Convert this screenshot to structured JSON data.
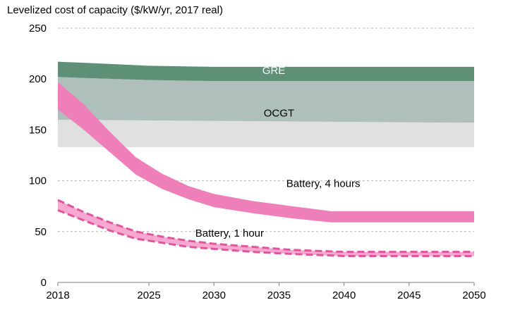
{
  "chart_data": {
    "type": "area",
    "title": "Levelized cost of capacity ($/kW/yr, 2017 real)",
    "xlabel": "",
    "ylabel": "",
    "xlim": [
      2018,
      2050
    ],
    "ylim": [
      0,
      250
    ],
    "x_ticks": [
      "2018",
      "2025",
      "2030",
      "2035",
      "2040",
      "2045",
      "2050"
    ],
    "y_ticks": [
      "0",
      "50",
      "100",
      "150",
      "200",
      "250"
    ],
    "grid": "horizontal dashed",
    "bands": [
      {
        "name": "OCGT",
        "label": "OCGT",
        "style": "filled-range",
        "fill": "#afbfbb",
        "x": [
          2018,
          2020,
          2025,
          2030,
          2035,
          2040,
          2045,
          2050
        ],
        "upper": [
          202,
          201,
          199,
          198,
          198,
          198,
          198,
          198
        ],
        "lower": [
          160,
          159,
          158,
          157,
          157,
          157,
          157,
          157
        ]
      },
      {
        "name": "OCGT lower range",
        "label": "",
        "style": "filled-range",
        "fill": "#e0e0e0",
        "x": [
          2018,
          2050
        ],
        "upper": [
          160,
          157
        ],
        "lower": [
          133,
          133
        ]
      },
      {
        "name": "GRE",
        "label": "GRE",
        "style": "filled-range",
        "fill": "#5e9077",
        "x": [
          2018,
          2020,
          2025,
          2030,
          2035,
          2040,
          2045,
          2050
        ],
        "upper": [
          217,
          216,
          213,
          212,
          212,
          212,
          212,
          212
        ],
        "lower": [
          202,
          201,
          199,
          198,
          198,
          198,
          198,
          198
        ]
      },
      {
        "name": "Battery, 4 hours",
        "label": "Battery, 4 hours",
        "style": "filled-range",
        "fill": "#ef7fb9",
        "x": [
          2018,
          2020,
          2022,
          2024,
          2026,
          2028,
          2030,
          2033,
          2036,
          2039,
          2045,
          2050
        ],
        "upper": [
          197,
          175,
          148,
          123,
          107,
          95,
          87,
          80,
          75,
          70,
          70,
          70
        ],
        "lower": [
          170,
          150,
          128,
          106,
          92,
          82,
          74,
          68,
          63,
          59,
          59,
          59
        ]
      },
      {
        "name": "Battery, 1 hour",
        "label": "Battery, 1 hour",
        "style": "dashed-range",
        "fill": "#f6a8d0",
        "stroke": "#e2549b",
        "x": [
          2018,
          2020,
          2022,
          2024,
          2026,
          2028,
          2030,
          2033,
          2036,
          2040,
          2045,
          2050
        ],
        "upper": [
          81,
          69,
          59,
          50,
          45,
          41,
          38,
          35,
          32,
          30,
          30,
          30
        ],
        "lower": [
          71,
          61,
          51,
          43,
          39,
          35,
          33,
          30,
          28,
          26,
          26,
          26
        ]
      }
    ],
    "annotations": [
      {
        "text": "GRE",
        "x": 2034.6,
        "y": 205,
        "color": "#ffffff"
      },
      {
        "text": "OCGT",
        "x": 2035.0,
        "y": 163,
        "color": "#000000"
      },
      {
        "text": "Battery, 4 hours",
        "x": 2038.4,
        "y": 94,
        "color": "#000000"
      },
      {
        "text": "Battery, 1 hour",
        "x": 2031.2,
        "y": 45,
        "color": "#000000"
      }
    ]
  }
}
